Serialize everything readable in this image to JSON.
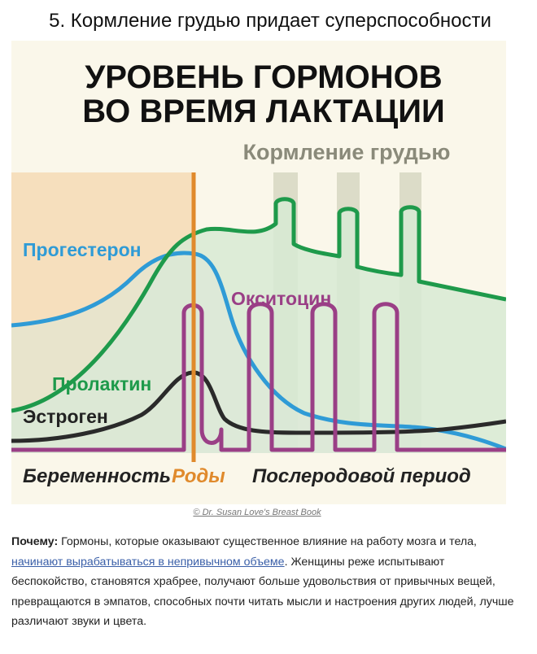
{
  "article": {
    "heading": "5. Кормление грудью придает суперспособности"
  },
  "infographic": {
    "title_line1": "УРОВЕНЬ ГОРМОНОВ",
    "title_line2": "ВО ВРЕМЯ ЛАКТАЦИИ",
    "breastfeeding_label": "Кормление грудью",
    "labels": {
      "progesterone": "Прогестерон",
      "oxytocin": "Окситоцин",
      "prolactin": "Пролактин",
      "estrogen": "Эстроген"
    },
    "phases": {
      "pregnancy": "Беременность",
      "birth": "Роды",
      "postpartum": "Послеродовой период"
    },
    "colors": {
      "progesterone": "#2f9bd6",
      "prolactin": "#1e9a4b",
      "oxytocin": "#9a3f86",
      "estrogen": "#2a2a2a",
      "birth": "#e08a2c",
      "feeding_band": "#d8d9c6"
    }
  },
  "credit": "© Dr. Susan Love's Breast Book",
  "body": {
    "lead": "Почему:",
    "text_before_link": " Гормоны, которые оказывают существенное влияние на работу мозга и тела, ",
    "link": "начинают вырабатываться в непривычном объеме",
    "text_after_link": ". Женщины реже испытывают беспокойство, становятся храбрее, получают больше удовольствия от привычных вещей, превращаются в эмпатов, способных почти читать мысли и настроения других людей, лучше различают звуки и цвета."
  }
}
